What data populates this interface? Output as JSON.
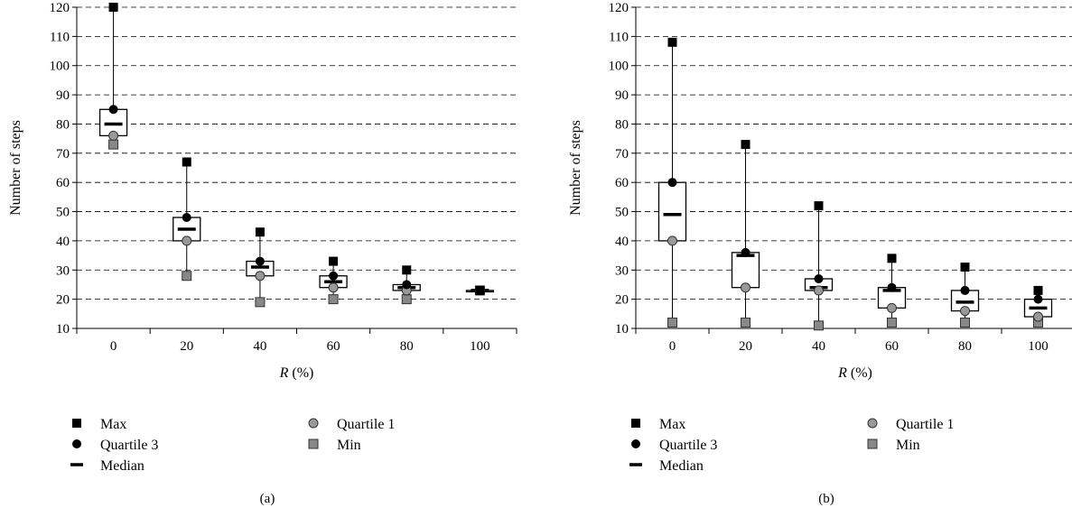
{
  "legend_labels": {
    "max": "Max",
    "q3": "Quartile 3",
    "median": "Median",
    "q1": "Quartile 1",
    "min": "Min"
  },
  "colors": {
    "max": "#000000",
    "q3": "#000000",
    "q1": "#999999",
    "min": "#888888",
    "grid": "#000000",
    "box_fill": "#ffffff"
  },
  "chart_data": [
    {
      "type": "boxplot",
      "panel_label": "(a)",
      "xlabel_var": "R",
      "xlabel_unit": " (%)",
      "ylabel": "Number of steps",
      "categories": [
        "0",
        "20",
        "40",
        "60",
        "80",
        "100"
      ],
      "ylim": [
        10,
        120
      ],
      "yticks": [
        10,
        20,
        30,
        40,
        50,
        60,
        70,
        80,
        90,
        100,
        110,
        120
      ],
      "grid": "dashed-horizontal",
      "legend_position": "bottom",
      "series": {
        "max": [
          120,
          67,
          43,
          33,
          30,
          23
        ],
        "q3": [
          85,
          48,
          33,
          28,
          25,
          23
        ],
        "median": [
          80,
          44,
          31,
          26,
          24,
          23
        ],
        "q1": [
          76,
          40,
          28,
          24,
          23,
          23
        ],
        "min": [
          73,
          28,
          19,
          20,
          20,
          23
        ]
      }
    },
    {
      "type": "boxplot",
      "panel_label": "(b)",
      "xlabel_var": "R",
      "xlabel_unit": " (%)",
      "ylabel": "Number of steps",
      "categories": [
        "0",
        "20",
        "40",
        "60",
        "80",
        "100"
      ],
      "ylim": [
        10,
        120
      ],
      "yticks": [
        10,
        20,
        30,
        40,
        50,
        60,
        70,
        80,
        90,
        100,
        110,
        120
      ],
      "grid": "dashed-horizontal",
      "legend_position": "bottom",
      "series": {
        "max": [
          108,
          73,
          52,
          34,
          31,
          23
        ],
        "q3": [
          60,
          36,
          27,
          24,
          23,
          20
        ],
        "median": [
          49,
          35,
          24,
          23,
          19,
          17
        ],
        "q1": [
          40,
          24,
          23,
          17,
          16,
          14
        ],
        "min": [
          12,
          12,
          11,
          12,
          12,
          12
        ]
      }
    }
  ]
}
